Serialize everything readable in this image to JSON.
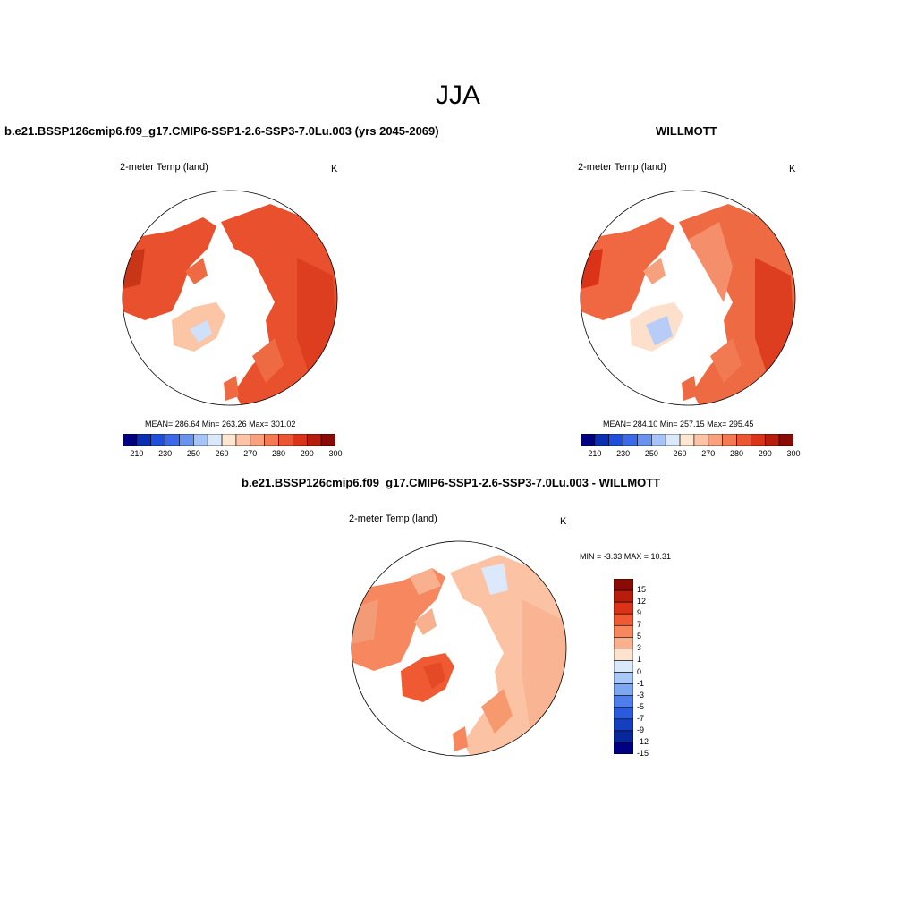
{
  "figure": {
    "season": "JJA"
  },
  "panels": {
    "model": {
      "title": "b.e21.BSSP126cmip6.f09_g17.CMIP6-SSP1-2.6-SSP3-7.0Lu.003 (yrs 2045-2069)",
      "variable": "2-meter Temp (land)",
      "units": "K",
      "stats": "MEAN= 286.64  Min= 263.26  Max= 301.02"
    },
    "obs": {
      "title": "WILLMOTT",
      "variable": "2-meter Temp (land)",
      "units": "K",
      "stats": "MEAN= 284.10  Min= 257.15  Max= 295.45"
    },
    "diff": {
      "title": "b.e21.BSSP126cmip6.f09_g17.CMIP6-SSP1-2.6-SSP3-7.0Lu.003 - WILLMOTT",
      "variable": "2-meter Temp (land)",
      "units": "K",
      "stats": "MIN =  -3.33 MAX =  10.31"
    }
  },
  "colorbars": {
    "absolute": {
      "colors": [
        "#000080",
        "#0a2fb0",
        "#1f4fd8",
        "#3a6ae8",
        "#6a93f0",
        "#a6c4f7",
        "#d9e8fb",
        "#fde6d2",
        "#fcc4a6",
        "#f9a07c",
        "#f47a53",
        "#ec5632",
        "#db3318",
        "#b71c0c",
        "#8a0a05"
      ],
      "tick_labels": [
        "210",
        "230",
        "250",
        "260",
        "270",
        "280",
        "290",
        "300"
      ]
    },
    "difference": {
      "colors": [
        "#8a0a05",
        "#b71c0c",
        "#db3318",
        "#ef5a33",
        "#f6875e",
        "#f9b08e",
        "#fde3cd",
        "#d9e8fb",
        "#aac8f7",
        "#7ea7f2",
        "#4f7eea",
        "#2b5bdc",
        "#163fbf",
        "#07279a",
        "#000080"
      ],
      "tick_labels": [
        "15",
        "12",
        "9",
        "7",
        "5",
        "3",
        "1",
        "0",
        "-1",
        "-3",
        "-5",
        "-7",
        "-9",
        "-12",
        "-15"
      ]
    }
  }
}
